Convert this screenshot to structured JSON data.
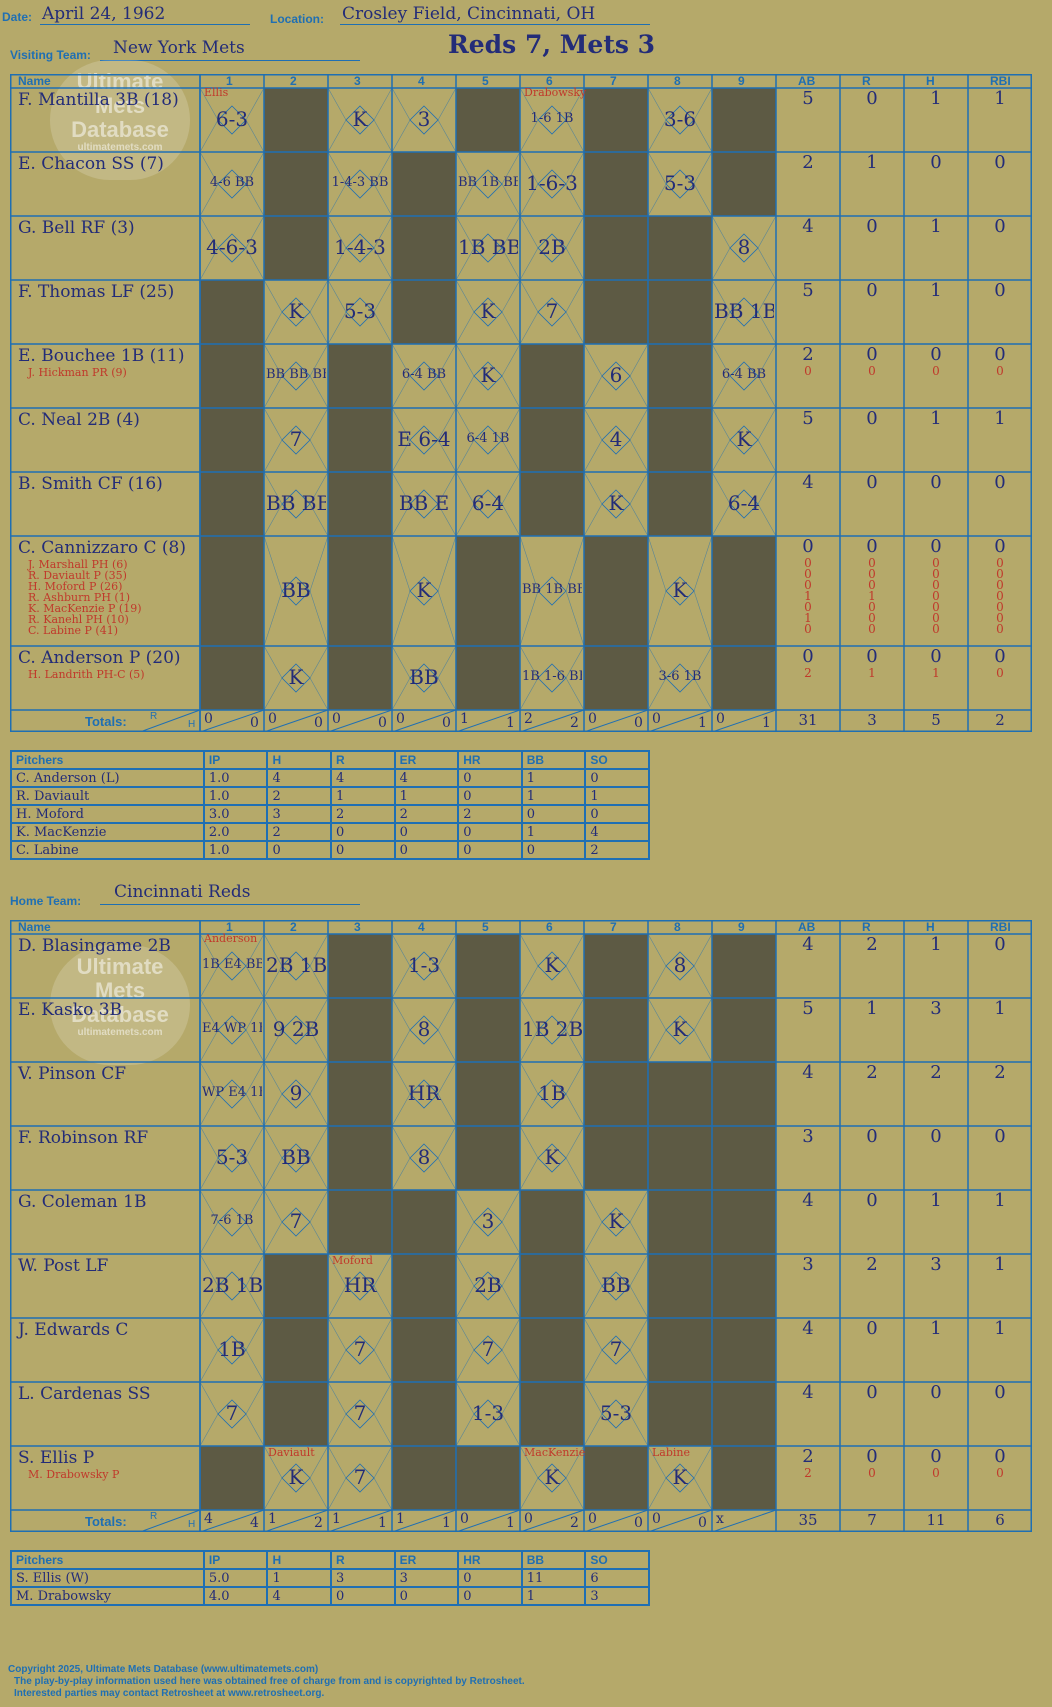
{
  "header": {
    "date_label": "Date:",
    "date": "April 24, 1962",
    "location_label": "Location:",
    "location": "Crosley Field, Cincinnati, OH",
    "visiting_label": "Visiting Team:",
    "visiting_team": "New York Mets",
    "score_title": "Reds 7, Mets 3",
    "home_label": "Home Team:",
    "home_team": "Cincinnati Reds"
  },
  "watermark": {
    "line1": "Ultimate",
    "line2": "Mets",
    "line3": "Database",
    "url": "ultimatemets.com"
  },
  "columns": {
    "name": "Name",
    "innings": [
      "1",
      "2",
      "3",
      "4",
      "5",
      "6",
      "7",
      "8",
      "9"
    ],
    "stats": [
      "AB",
      "R",
      "H",
      "RBI"
    ]
  },
  "visitors": {
    "players": [
      {
        "name": "F. Mantilla 3B (18)",
        "subs": [],
        "ab": "5",
        "r": "0",
        "h": "1",
        "rbi": "1",
        "subab": [],
        "subr": [],
        "subh": [],
        "subrbi": [],
        "plays": [
          "6-3",
          "",
          "K",
          "3",
          "",
          "1-6 1B",
          "",
          "3-6",
          ""
        ]
      },
      {
        "name": "E. Chacon SS (7)",
        "subs": [],
        "ab": "2",
        "r": "1",
        "h": "0",
        "rbi": "0",
        "subab": [],
        "subr": [],
        "subh": [],
        "subrbi": [],
        "plays": [
          "4-6 BB",
          "",
          "1-4-3 BB",
          "",
          "BB 1B BB",
          "1-6-3",
          "",
          "5-3",
          ""
        ]
      },
      {
        "name": "G. Bell RF (3)",
        "subs": [],
        "ab": "4",
        "r": "0",
        "h": "1",
        "rbi": "0",
        "subab": [],
        "subr": [],
        "subh": [],
        "subrbi": [],
        "plays": [
          "4-6-3",
          "",
          "1-4-3",
          "",
          "1B BB",
          "2B",
          "",
          "",
          "8"
        ]
      },
      {
        "name": "F. Thomas LF (25)",
        "subs": [],
        "ab": "5",
        "r": "0",
        "h": "1",
        "rbi": "0",
        "subab": [],
        "subr": [],
        "subh": [],
        "subrbi": [],
        "plays": [
          "",
          "K",
          "5-3",
          "",
          "K",
          "7",
          "",
          "",
          "BB 1B"
        ]
      },
      {
        "name": "E. Bouchee 1B (11)",
        "subs": [
          "J. Hickman PR (9)"
        ],
        "ab": "2",
        "r": "0",
        "h": "0",
        "rbi": "0",
        "subab": [
          "0"
        ],
        "subr": [
          "0"
        ],
        "subh": [
          "0"
        ],
        "subrbi": [
          "0"
        ],
        "plays": [
          "",
          "BB BB BB",
          "",
          "6-4 BB",
          "K",
          "",
          "6",
          "",
          "6-4 BB"
        ]
      },
      {
        "name": "C. Neal 2B (4)",
        "subs": [],
        "ab": "5",
        "r": "0",
        "h": "1",
        "rbi": "1",
        "subab": [],
        "subr": [],
        "subh": [],
        "subrbi": [],
        "plays": [
          "",
          "7",
          "",
          "E 6-4",
          "6-4 1B",
          "",
          "4",
          "",
          "K"
        ]
      },
      {
        "name": "B. Smith CF (16)",
        "subs": [],
        "ab": "4",
        "r": "0",
        "h": "0",
        "rbi": "0",
        "subab": [],
        "subr": [],
        "subh": [],
        "subrbi": [],
        "plays": [
          "",
          "BB BB",
          "",
          "BB E",
          "6-4",
          "",
          "K",
          "",
          "6-4"
        ]
      },
      {
        "name": "C. Cannizzaro C (8)",
        "subs": [
          "J. Marshall PH (6)",
          "R. Daviault P (35)",
          "H. Moford P (26)",
          "R. Ashburn PH (1)",
          "K. MacKenzie P (19)",
          "R. Kanehl PH (10)",
          "C. Labine P (41)"
        ],
        "ab": "0",
        "r": "0",
        "h": "0",
        "rbi": "0",
        "subab": [
          "0",
          "0",
          "0",
          "1",
          "0",
          "1",
          "0"
        ],
        "subr": [
          "0",
          "0",
          "0",
          "1",
          "0",
          "0",
          "0"
        ],
        "subh": [
          "0",
          "0",
          "0",
          "0",
          "0",
          "0",
          "0"
        ],
        "subrbi": [
          "0",
          "0",
          "0",
          "0",
          "0",
          "0",
          "0"
        ],
        "plays": [
          "",
          "BB",
          "",
          "K",
          "",
          "BB 1B BB",
          "",
          "K",
          ""
        ]
      },
      {
        "name": "C. Anderson P (20)",
        "subs": [
          "H. Landrith PH-C (5)"
        ],
        "ab": "0",
        "r": "0",
        "h": "0",
        "rbi": "0",
        "subab": [
          "2"
        ],
        "subr": [
          "1"
        ],
        "subh": [
          "1"
        ],
        "subrbi": [
          "0"
        ],
        "plays": [
          "",
          "K",
          "",
          "BB",
          "",
          "1B 1-6 BB",
          "",
          "3-6 1B",
          ""
        ]
      }
    ],
    "annotations": [
      "Ellis",
      "Drabowsky"
    ],
    "totals_label": "Totals:",
    "rh_r": "R",
    "rh_h": "H",
    "inning_totals": [
      [
        "0",
        "0"
      ],
      [
        "0",
        "0"
      ],
      [
        "0",
        "0"
      ],
      [
        "0",
        "0"
      ],
      [
        "1",
        "1"
      ],
      [
        "2",
        "2"
      ],
      [
        "0",
        "0"
      ],
      [
        "0",
        "1"
      ],
      [
        "0",
        "1"
      ]
    ],
    "totals": [
      "31",
      "3",
      "5",
      "2"
    ]
  },
  "visitor_pitchers": {
    "headers": [
      "Pitchers",
      "IP",
      "H",
      "R",
      "ER",
      "HR",
      "BB",
      "SO"
    ],
    "rows": [
      [
        "C. Anderson (L)",
        "1.0",
        "4",
        "4",
        "4",
        "0",
        "1",
        "0"
      ],
      [
        "R. Daviault",
        "1.0",
        "2",
        "1",
        "1",
        "0",
        "1",
        "1"
      ],
      [
        "H. Moford",
        "3.0",
        "3",
        "2",
        "2",
        "2",
        "0",
        "0"
      ],
      [
        "K. MacKenzie",
        "2.0",
        "2",
        "0",
        "0",
        "0",
        "1",
        "4"
      ],
      [
        "C. Labine",
        "1.0",
        "0",
        "0",
        "0",
        "0",
        "0",
        "2"
      ]
    ]
  },
  "home": {
    "players": [
      {
        "name": "D. Blasingame 2B",
        "subs": [],
        "ab": "4",
        "r": "2",
        "h": "1",
        "rbi": "0",
        "subab": [],
        "subr": [],
        "subh": [],
        "subrbi": [],
        "plays": [
          "1B E4 BB",
          "2B 1B",
          "",
          "1-3",
          "",
          "K",
          "",
          "8",
          ""
        ]
      },
      {
        "name": "E. Kasko 3B",
        "subs": [],
        "ab": "5",
        "r": "1",
        "h": "3",
        "rbi": "1",
        "subab": [],
        "subr": [],
        "subh": [],
        "subrbi": [],
        "plays": [
          "E4 WP 1B",
          "9 2B",
          "",
          "8",
          "",
          "1B 2B",
          "",
          "K",
          ""
        ]
      },
      {
        "name": "V. Pinson CF",
        "subs": [],
        "ab": "4",
        "r": "2",
        "h": "2",
        "rbi": "2",
        "subab": [],
        "subr": [],
        "subh": [],
        "subrbi": [],
        "plays": [
          "WP E4 1B",
          "9",
          "",
          "HR",
          "",
          "1B",
          "",
          "",
          ""
        ]
      },
      {
        "name": "F. Robinson RF",
        "subs": [],
        "ab": "3",
        "r": "0",
        "h": "0",
        "rbi": "0",
        "subab": [],
        "subr": [],
        "subh": [],
        "subrbi": [],
        "plays": [
          "5-3",
          "BB",
          "",
          "8",
          "",
          "K",
          "",
          "",
          ""
        ]
      },
      {
        "name": "G. Coleman 1B",
        "subs": [],
        "ab": "4",
        "r": "0",
        "h": "1",
        "rbi": "1",
        "subab": [],
        "subr": [],
        "subh": [],
        "subrbi": [],
        "plays": [
          "7-6 1B",
          "7",
          "",
          "",
          "3",
          "",
          "K",
          "",
          ""
        ]
      },
      {
        "name": "W. Post LF",
        "subs": [],
        "ab": "3",
        "r": "2",
        "h": "3",
        "rbi": "1",
        "subab": [],
        "subr": [],
        "subh": [],
        "subrbi": [],
        "plays": [
          "2B 1B",
          "",
          "HR",
          "",
          "2B",
          "",
          "BB",
          "",
          ""
        ]
      },
      {
        "name": "J. Edwards C",
        "subs": [],
        "ab": "4",
        "r": "0",
        "h": "1",
        "rbi": "1",
        "subab": [],
        "subr": [],
        "subh": [],
        "subrbi": [],
        "plays": [
          "1B",
          "",
          "7",
          "",
          "7",
          "",
          "7",
          "",
          ""
        ]
      },
      {
        "name": "L. Cardenas SS",
        "subs": [],
        "ab": "4",
        "r": "0",
        "h": "0",
        "rbi": "0",
        "subab": [],
        "subr": [],
        "subh": [],
        "subrbi": [],
        "plays": [
          "7",
          "",
          "7",
          "",
          "1-3",
          "",
          "5-3",
          "",
          ""
        ]
      },
      {
        "name": "S. Ellis P",
        "subs": [
          "M. Drabowsky P"
        ],
        "ab": "2",
        "r": "0",
        "h": "0",
        "rbi": "0",
        "subab": [
          "2"
        ],
        "subr": [
          "0"
        ],
        "subh": [
          "0"
        ],
        "subrbi": [
          "0"
        ],
        "plays": [
          "",
          "K",
          "7",
          "",
          "",
          "K",
          "",
          "K",
          ""
        ]
      }
    ],
    "annotations": [
      "Anderson",
      "Daviault",
      "Moford",
      "MacKenzie",
      "Labine"
    ],
    "totals_label": "Totals:",
    "rh_r": "R",
    "rh_h": "H",
    "inning_totals": [
      [
        "4",
        "4"
      ],
      [
        "1",
        "2"
      ],
      [
        "1",
        "1"
      ],
      [
        "1",
        "1"
      ],
      [
        "0",
        "1"
      ],
      [
        "0",
        "2"
      ],
      [
        "0",
        "0"
      ],
      [
        "0",
        "0"
      ],
      [
        "x",
        ""
      ]
    ],
    "totals": [
      "35",
      "7",
      "11",
      "6"
    ]
  },
  "home_pitchers": {
    "headers": [
      "Pitchers",
      "IP",
      "H",
      "R",
      "ER",
      "HR",
      "BB",
      "SO"
    ],
    "rows": [
      [
        "S. Ellis (W)",
        "5.0",
        "1",
        "3",
        "3",
        "0",
        "11",
        "6"
      ],
      [
        "M. Drabowsky",
        "4.0",
        "4",
        "0",
        "0",
        "0",
        "1",
        "3"
      ]
    ]
  },
  "footer": {
    "line1": "Copyright 2025, Ultimate Mets Database (www.ultimatemets.com)",
    "line2": "The play-by-play information used here was obtained free of charge from and is copyrighted by Retrosheet.",
    "line3": "Interested parties may contact Retrosheet at www.retrosheet.org."
  },
  "colors": {
    "background": "#b5a96a",
    "grid": "#1f6fb3",
    "dark_cell": "#5d5a44",
    "ink": "#232c78",
    "sub_ink": "#c0392b"
  }
}
